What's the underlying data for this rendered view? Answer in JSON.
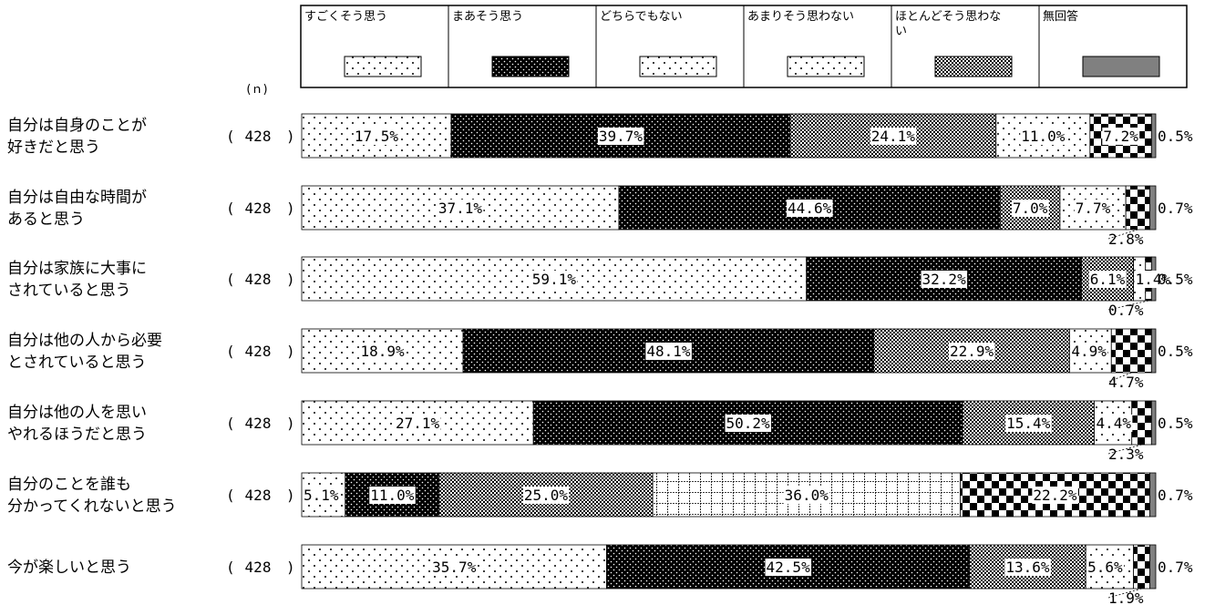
{
  "chart_data": {
    "type": "bar",
    "orientation": "horizontal",
    "stacked": true,
    "percent": true,
    "n_label": "(ｎ)",
    "categories": [
      "自分は自身のことが\n好きだと思う",
      "自分は自由な時間が\nあると思う",
      "自分は家族に大事に\nされていると思う",
      "自分は他の人から必要\nとされていると思う",
      "自分は他の人を思い\nやれるほうだと思う",
      "自分のことを誰も\n分かってくれないと思う",
      "今が楽しいと思う"
    ],
    "n": [
      "428",
      "428",
      "428",
      "428",
      "428",
      "428",
      "428"
    ],
    "series": [
      {
        "name": "すごくそう思う",
        "values": [
          17.5,
          37.1,
          59.1,
          18.9,
          27.1,
          5.1,
          35.7
        ]
      },
      {
        "name": "まあそう思う",
        "values": [
          39.7,
          44.6,
          32.2,
          48.1,
          50.2,
          11.0,
          42.5
        ]
      },
      {
        "name": "どちらでもない",
        "values": [
          24.1,
          7.0,
          6.1,
          22.9,
          15.4,
          25.0,
          13.6
        ]
      },
      {
        "name": "あまりそう思わない",
        "values": [
          11.0,
          7.7,
          1.4,
          4.9,
          4.4,
          36.0,
          5.6
        ]
      },
      {
        "name": "ほとんどそう思わない",
        "values": [
          7.2,
          2.8,
          0.7,
          4.7,
          2.3,
          22.2,
          1.9
        ]
      },
      {
        "name": "無回答",
        "values": [
          0.5,
          0.7,
          0.5,
          0.5,
          0.5,
          0.7,
          0.7
        ]
      }
    ],
    "value_labels": [
      [
        "17.5%",
        "39.7%",
        "24.1%",
        "11.0%",
        "7.2%",
        "0.5%"
      ],
      [
        "37.1%",
        "44.6%",
        "7.0%",
        "7.7%",
        "2.8%",
        "0.7%"
      ],
      [
        "59.1%",
        "32.2%",
        "6.1%",
        "1.4%",
        "0.7%",
        "0.5%"
      ],
      [
        "18.9%",
        "48.1%",
        "22.9%",
        "4.9%",
        "4.7%",
        "0.5%"
      ],
      [
        "27.1%",
        "50.2%",
        "15.4%",
        "4.4%",
        "2.3%",
        "0.5%"
      ],
      [
        "5.1%",
        "11.0%",
        "25.0%",
        "36.0%",
        "22.2%",
        "0.7%"
      ],
      [
        "35.7%",
        "42.5%",
        "13.6%",
        "5.6%",
        "1.9%",
        "0.7%"
      ]
    ],
    "value_labels_outside": [
      [],
      [
        4
      ],
      [
        4
      ],
      [
        4
      ],
      [
        4
      ],
      [],
      [
        4
      ]
    ],
    "legend_position": "top",
    "title": "",
    "xlabel": "",
    "ylabel": ""
  }
}
